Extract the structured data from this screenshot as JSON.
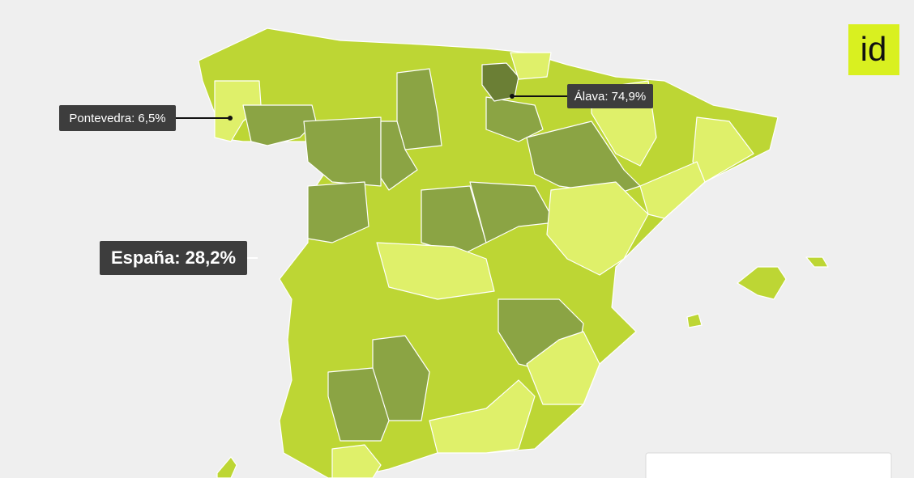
{
  "callouts": [
    {
      "label": "Pontevedra: 6,5%"
    },
    {
      "label": "Álava: 74,9%"
    }
  ],
  "national": {
    "label": "España: 28,2%"
  },
  "logo": {
    "text": "id"
  }
}
